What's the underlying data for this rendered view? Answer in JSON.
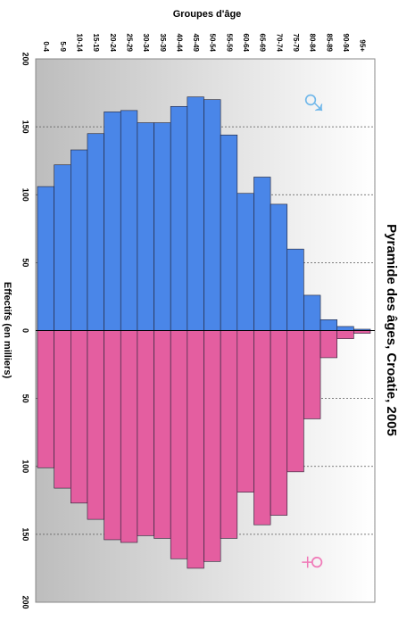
{
  "chart_data": {
    "type": "bar",
    "title": "Pyramide des âges, Croatie, 2005",
    "x_label": "Groupes d'âge",
    "y_label": "Effectifs (en milliers)",
    "annotations": [
      "♂",
      "♀"
    ],
    "categories": [
      "0-4",
      "5-9",
      "10-14",
      "15-19",
      "20-24",
      "25-29",
      "30-34",
      "35-39",
      "40-44",
      "45-49",
      "50-54",
      "55-59",
      "60-64",
      "65-69",
      "70-74",
      "75-79",
      "80-84",
      "85-89",
      "90-94",
      "95+"
    ],
    "series": [
      {
        "color": "#4a86e8",
        "values": [
          106,
          122,
          133,
          145,
          161,
          162,
          153,
          153,
          165,
          172,
          170,
          144,
          101,
          113,
          93,
          60,
          26,
          8,
          3,
          1
        ]
      },
      {
        "color": "#e45ea0",
        "values": [
          101,
          116,
          127,
          139,
          154,
          156,
          151,
          153,
          168,
          175,
          170,
          153,
          119,
          143,
          136,
          104,
          65,
          20,
          6,
          2
        ]
      }
    ],
    "ylim": [
      -200,
      200
    ],
    "yticks": [
      {
        "value": -200,
        "label": "200"
      },
      {
        "value": -150,
        "label": "150"
      },
      {
        "value": -100,
        "label": "100"
      },
      {
        "value": -50,
        "label": "50"
      },
      0,
      50,
      100,
      150,
      200
    ],
    "grid": true
  }
}
